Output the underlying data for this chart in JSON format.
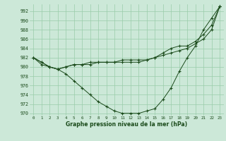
{
  "xlabel": "Graphe pression niveau de la mer (hPa)",
  "background_color": "#cce8d8",
  "grid_color": "#99ccaa",
  "line_color": "#1a4a1a",
  "ylim": [
    969.5,
    993.5
  ],
  "xlim": [
    -0.5,
    23.5
  ],
  "yticks": [
    970,
    972,
    974,
    976,
    978,
    980,
    982,
    984,
    986,
    988,
    990,
    992
  ],
  "xtick_labels": [
    "0",
    "1",
    "2",
    "3",
    "4",
    "5",
    "6",
    "7",
    "8",
    "9",
    "10",
    "11",
    "12",
    "13",
    "14",
    "15",
    "16",
    "17",
    "18",
    "19",
    "20",
    "21",
    "22",
    "23"
  ],
  "line1": [
    982,
    981,
    980,
    979.5,
    978.5,
    977,
    975.5,
    974,
    972.5,
    971.5,
    970.5,
    970,
    970,
    970,
    970.5,
    971,
    973,
    975.5,
    979,
    982,
    984.5,
    988,
    990.5,
    993
  ],
  "line2": [
    982,
    980.5,
    980,
    979.5,
    980,
    980.5,
    980.5,
    981,
    981,
    981,
    981,
    981.5,
    981.5,
    981.5,
    981.5,
    982,
    982.5,
    983,
    983.5,
    984,
    985,
    986,
    988,
    993
  ],
  "line3": [
    982,
    981,
    980,
    979.5,
    980,
    980.5,
    980.5,
    980.5,
    981,
    981,
    981,
    981,
    981,
    981,
    981.5,
    982,
    983,
    984,
    984.5,
    984.5,
    985.5,
    987,
    989,
    993
  ]
}
